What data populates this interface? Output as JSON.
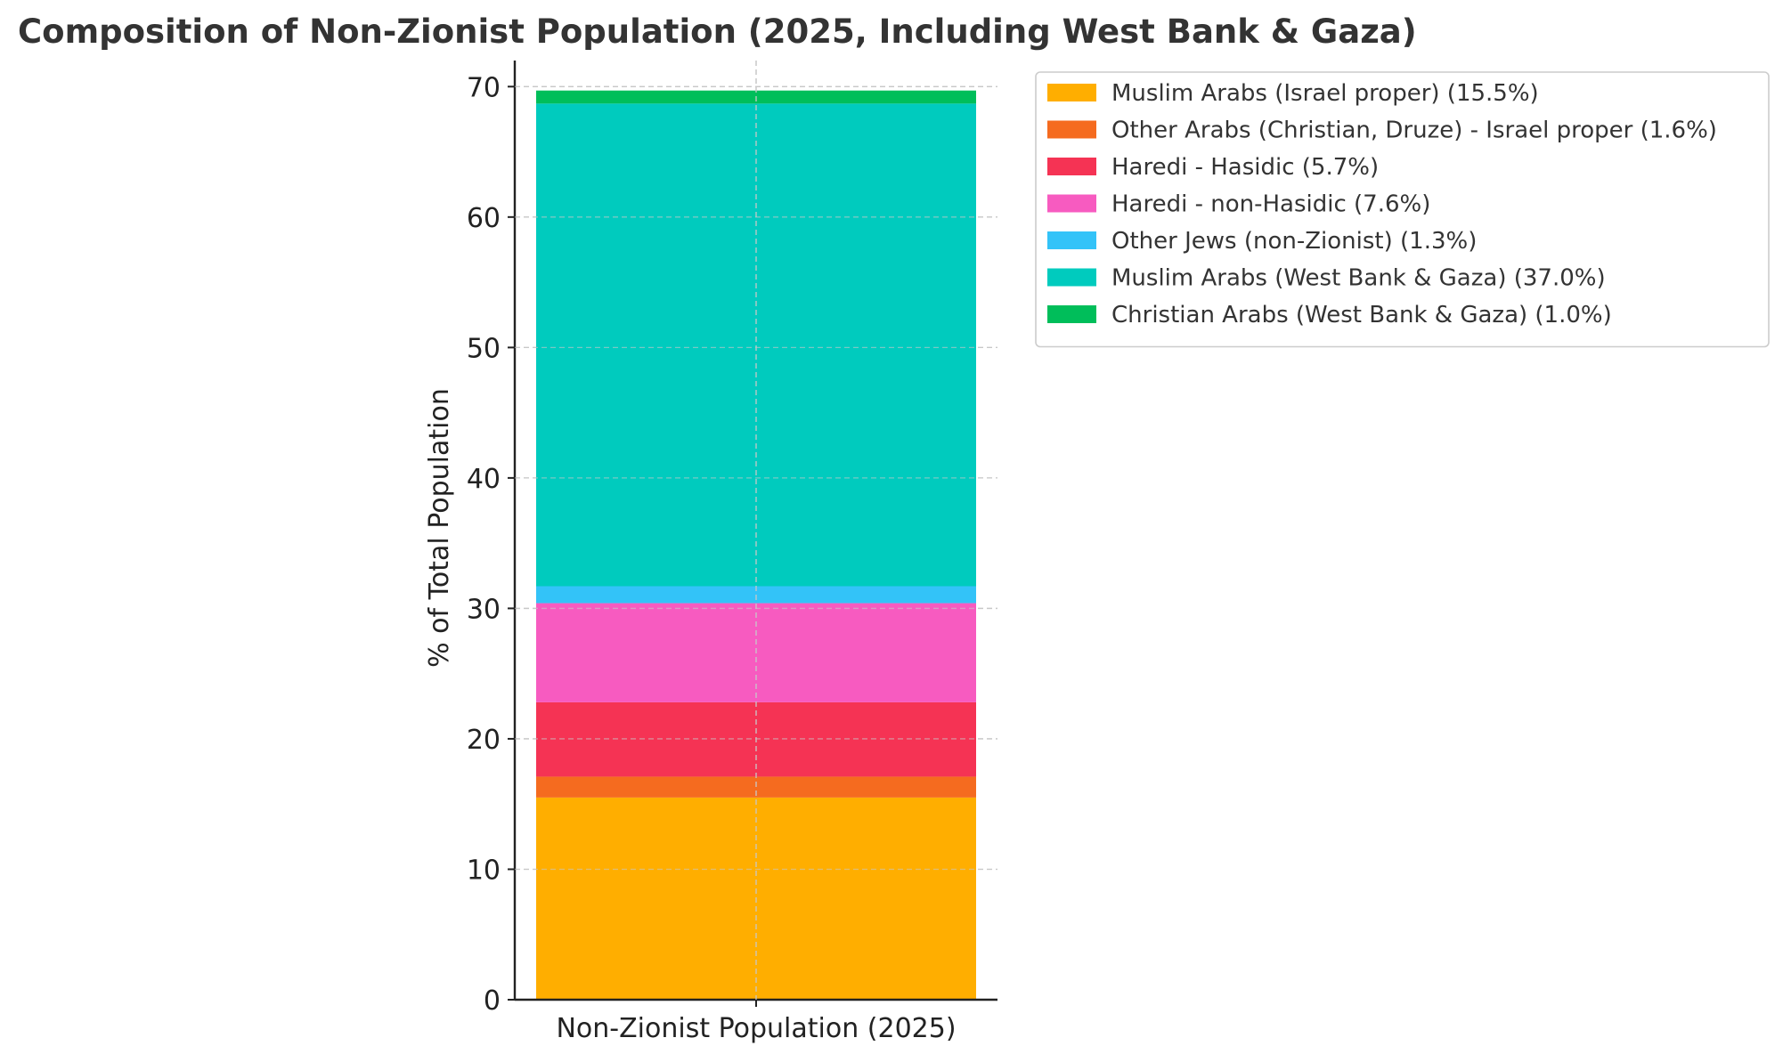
{
  "chart_data": {
    "type": "bar",
    "stacked": true,
    "title": "Composition of Non-Zionist Population (2025, Including West Bank & Gaza)",
    "xlabel": "",
    "ylabel": "% of Total Population",
    "categories": [
      "Non-Zionist Population (2025)"
    ],
    "ylim": [
      0,
      72
    ],
    "yticks": [
      0,
      10,
      20,
      30,
      40,
      50,
      60,
      70
    ],
    "grid": true,
    "legend_position": "outside-top-right",
    "series": [
      {
        "name": "Muslim Arabs (Israel proper) (15.5%)",
        "values": [
          15.5
        ],
        "color": "#FFAE00"
      },
      {
        "name": "Other Arabs (Christian, Druze) - Israel proper (1.6%)",
        "values": [
          1.6
        ],
        "color": "#F56B1F"
      },
      {
        "name": "Haredi - Hasidic (5.7%)",
        "values": [
          5.7
        ],
        "color": "#F53354"
      },
      {
        "name": "Haredi - non-Hasidic (7.6%)",
        "values": [
          7.6
        ],
        "color": "#F75BC0"
      },
      {
        "name": "Other Jews (non-Zionist) (1.3%)",
        "values": [
          1.3
        ],
        "color": "#33C3F8"
      },
      {
        "name": "Muslim Arabs (West Bank & Gaza) (37.0%)",
        "values": [
          37.0
        ],
        "color": "#00CBBE"
      },
      {
        "name": "Christian Arabs (West Bank & Gaza) (1.0%)",
        "values": [
          1.0
        ],
        "color": "#00BE5A"
      }
    ]
  }
}
